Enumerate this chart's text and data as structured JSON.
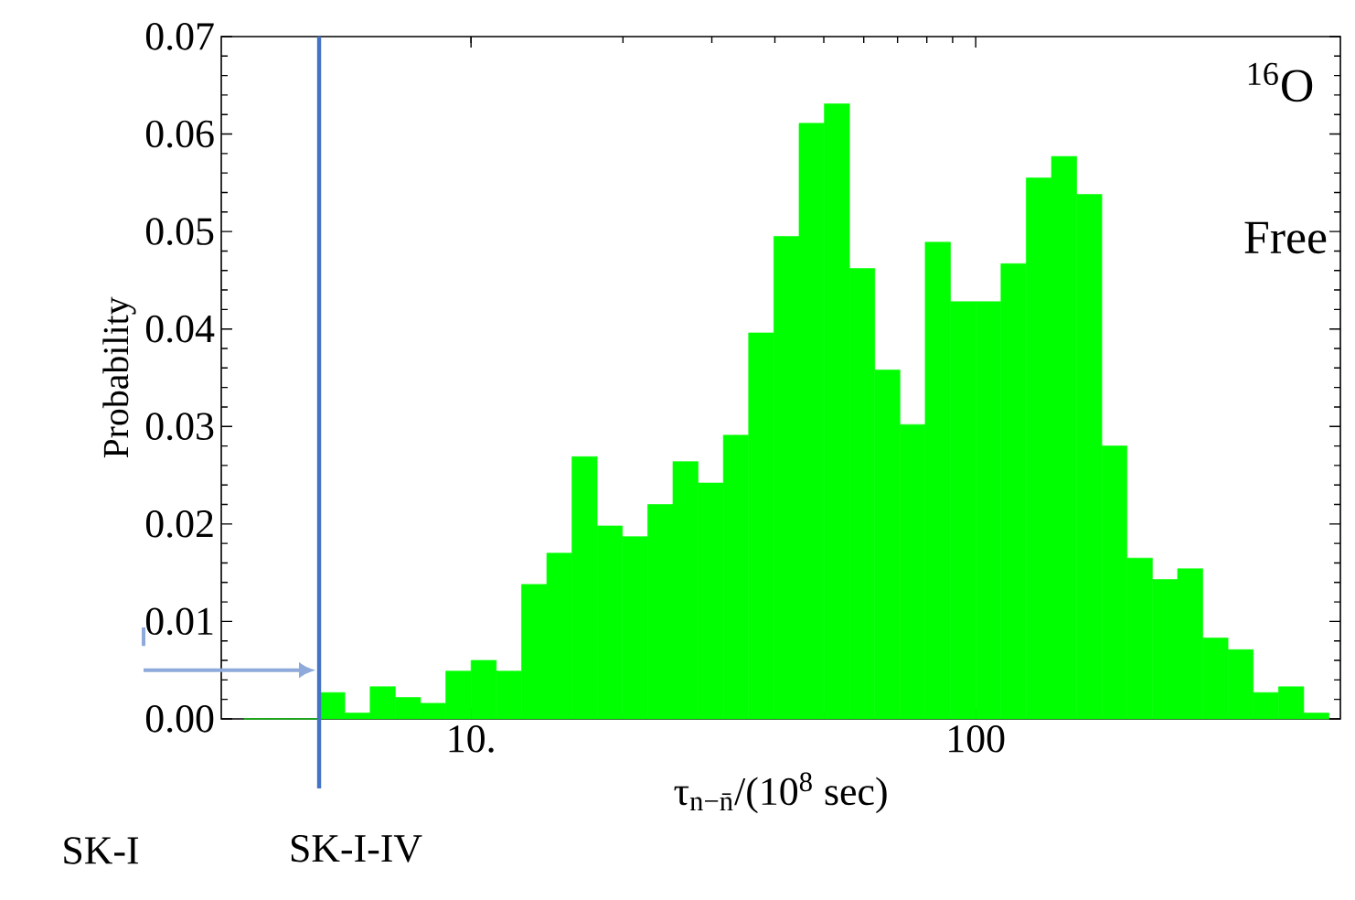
{
  "chart_data": {
    "type": "histogram",
    "xlabel": "τ$_{n−n̄}$/(10$^{8}$ sec)",
    "ylabel": "Probability",
    "bins": [
      3.548,
      3.981,
      4.467,
      5.012,
      5.623,
      6.31,
      7.079,
      7.943,
      8.913,
      10,
      11.22,
      12.59,
      14.13,
      15.85,
      17.78,
      19.95,
      22.39,
      25.12,
      28.18,
      31.62,
      35.48,
      39.81,
      44.67,
      50.12,
      56.23,
      63.1,
      70.79,
      79.43,
      89.13,
      100,
      112.2,
      125.9,
      141.3,
      158.5,
      177.8,
      199.5,
      223.9,
      251.2,
      281.8,
      316.2,
      354.8,
      398.1,
      446.7,
      501.2
    ],
    "values": [
      0,
      0,
      0,
      0.0027,
      0.0006,
      0.0033,
      0.0022,
      0.0016,
      0.0049,
      0.006,
      0.0049,
      0.0138,
      0.017,
      0.0269,
      0.0198,
      0.0187,
      0.022,
      0.0264,
      0.0242,
      0.0291,
      0.0396,
      0.0495,
      0.0611,
      0.0631,
      0.0462,
      0.0358,
      0.0302,
      0.0489,
      0.0428,
      0.0428,
      0.0467,
      0.0555,
      0.0577,
      0.0538,
      0.028,
      0.0165,
      0.0143,
      0.0154,
      0.0083,
      0.0071,
      0.0027,
      0.0033,
      0.0006
    ],
    "color": "#00ff00",
    "log": "x",
    "xlim": [
      3.2,
      528
    ],
    "xticks": [
      {
        "value": 10,
        "label": "10."
      },
      100
    ],
    "ylim": [
      0,
      0.07
    ],
    "yticks": [
      {
        "value": 0,
        "label": "0.00"
      },
      {
        "value": 0.01,
        "label": "0.01"
      },
      {
        "value": 0.02,
        "label": "0.02"
      },
      {
        "value": 0.03,
        "label": "0.03"
      },
      {
        "value": 0.04,
        "label": "0.04"
      },
      {
        "value": 0.05,
        "label": "0.05"
      },
      {
        "value": 0.06,
        "label": "0.06"
      },
      {
        "value": 0.07,
        "label": "0.07"
      }
    ],
    "ref_lines": [
      {
        "axis": "x",
        "value": 5,
        "label": "SK-I-IV",
        "color": "#4472c4"
      }
    ],
    "annotations": [
      "SK-I",
      "$^{16}$O",
      "Free"
    ]
  }
}
